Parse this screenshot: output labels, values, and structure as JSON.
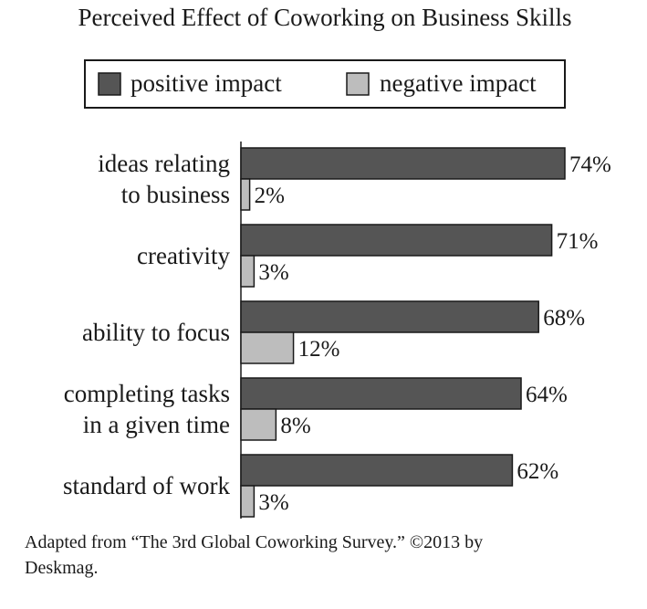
{
  "chart_data": {
    "type": "bar",
    "orientation": "horizontal",
    "title": "Perceived Effect of Coworking on Business Skills",
    "legend_position": "top",
    "categories": [
      [
        "ideas relating",
        "to business"
      ],
      [
        "creativity"
      ],
      [
        "ability to focus"
      ],
      [
        "completing tasks",
        "in a given time"
      ],
      [
        "standard of work"
      ]
    ],
    "series": [
      {
        "name": "positive impact",
        "color": "#555555",
        "values": [
          74,
          71,
          68,
          64,
          62
        ]
      },
      {
        "name": "negative impact",
        "color": "#bdbdbd",
        "values": [
          2,
          3,
          12,
          8,
          3
        ]
      }
    ],
    "value_suffix": "%",
    "xlim": [
      0,
      74
    ],
    "grid": false
  },
  "caption": {
    "line1": "Adapted from “The 3rd Global Coworking Survey.” ©2013 by",
    "line2": "Deskmag."
  }
}
